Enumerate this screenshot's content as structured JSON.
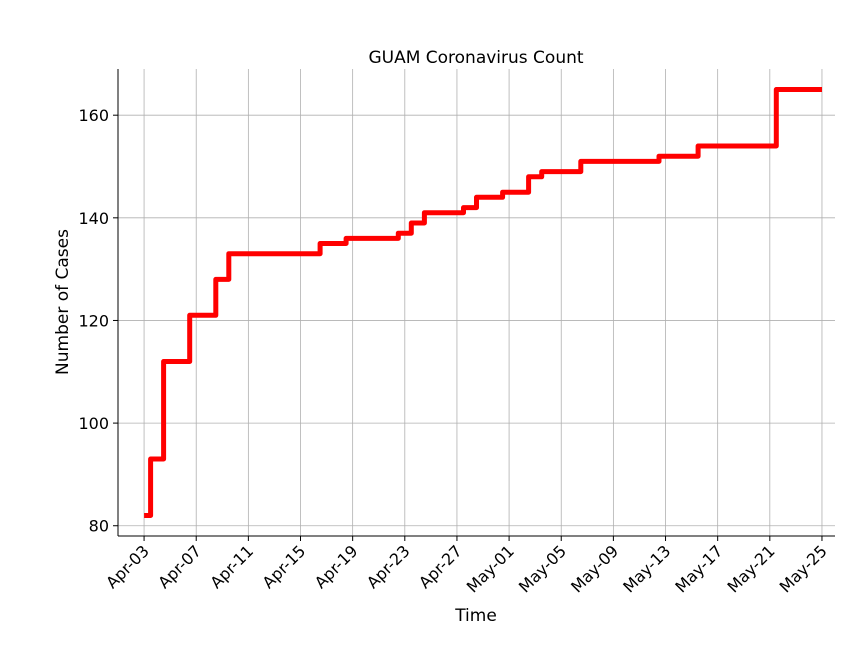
{
  "chart_data": {
    "type": "line",
    "title": "GUAM Coronavirus Count",
    "xlabel": "Time",
    "ylabel": "Number of Cases",
    "series_color": "#ff0000",
    "grid": true,
    "ylim": [
      78,
      169
    ],
    "xlim": [
      "2020-04-01",
      "2020-05-26"
    ],
    "yticks": [
      80,
      100,
      120,
      140,
      160
    ],
    "xticks": [
      "Apr-03",
      "Apr-07",
      "Apr-11",
      "Apr-15",
      "Apr-19",
      "Apr-23",
      "Apr-27",
      "May-01",
      "May-05",
      "May-09",
      "May-13",
      "May-17",
      "May-21",
      "May-25"
    ],
    "series": [
      {
        "x": [
          "2020-04-03",
          "2020-04-04",
          "2020-04-05",
          "2020-04-06",
          "2020-04-07",
          "2020-04-08",
          "2020-04-09",
          "2020-04-10",
          "2020-04-11",
          "2020-04-12",
          "2020-04-13",
          "2020-04-14",
          "2020-04-15",
          "2020-04-16",
          "2020-04-17",
          "2020-04-18",
          "2020-04-19",
          "2020-04-20",
          "2020-04-21",
          "2020-04-22",
          "2020-04-23",
          "2020-04-24",
          "2020-04-25",
          "2020-04-26",
          "2020-04-27",
          "2020-04-28",
          "2020-04-29",
          "2020-04-30",
          "2020-05-01",
          "2020-05-02",
          "2020-05-03",
          "2020-05-04",
          "2020-05-05",
          "2020-05-06",
          "2020-05-07",
          "2020-05-08",
          "2020-05-09",
          "2020-05-10",
          "2020-05-11",
          "2020-05-12",
          "2020-05-13",
          "2020-05-14",
          "2020-05-15",
          "2020-05-16",
          "2020-05-17",
          "2020-05-18",
          "2020-05-19",
          "2020-05-20",
          "2020-05-21",
          "2020-05-22",
          "2020-05-23",
          "2020-05-24",
          "2020-05-25"
        ],
        "values": [
          82,
          93,
          112,
          112,
          121,
          121,
          128,
          133,
          133,
          133,
          133,
          133,
          133,
          133,
          135,
          135,
          136,
          136,
          136,
          136,
          137,
          139,
          141,
          141,
          141,
          142,
          144,
          144,
          145,
          145,
          148,
          149,
          149,
          149,
          151,
          151,
          151,
          151,
          151,
          151,
          152,
          152,
          152,
          154,
          154,
          154,
          154,
          154,
          154,
          165,
          165,
          165,
          165
        ]
      }
    ]
  }
}
